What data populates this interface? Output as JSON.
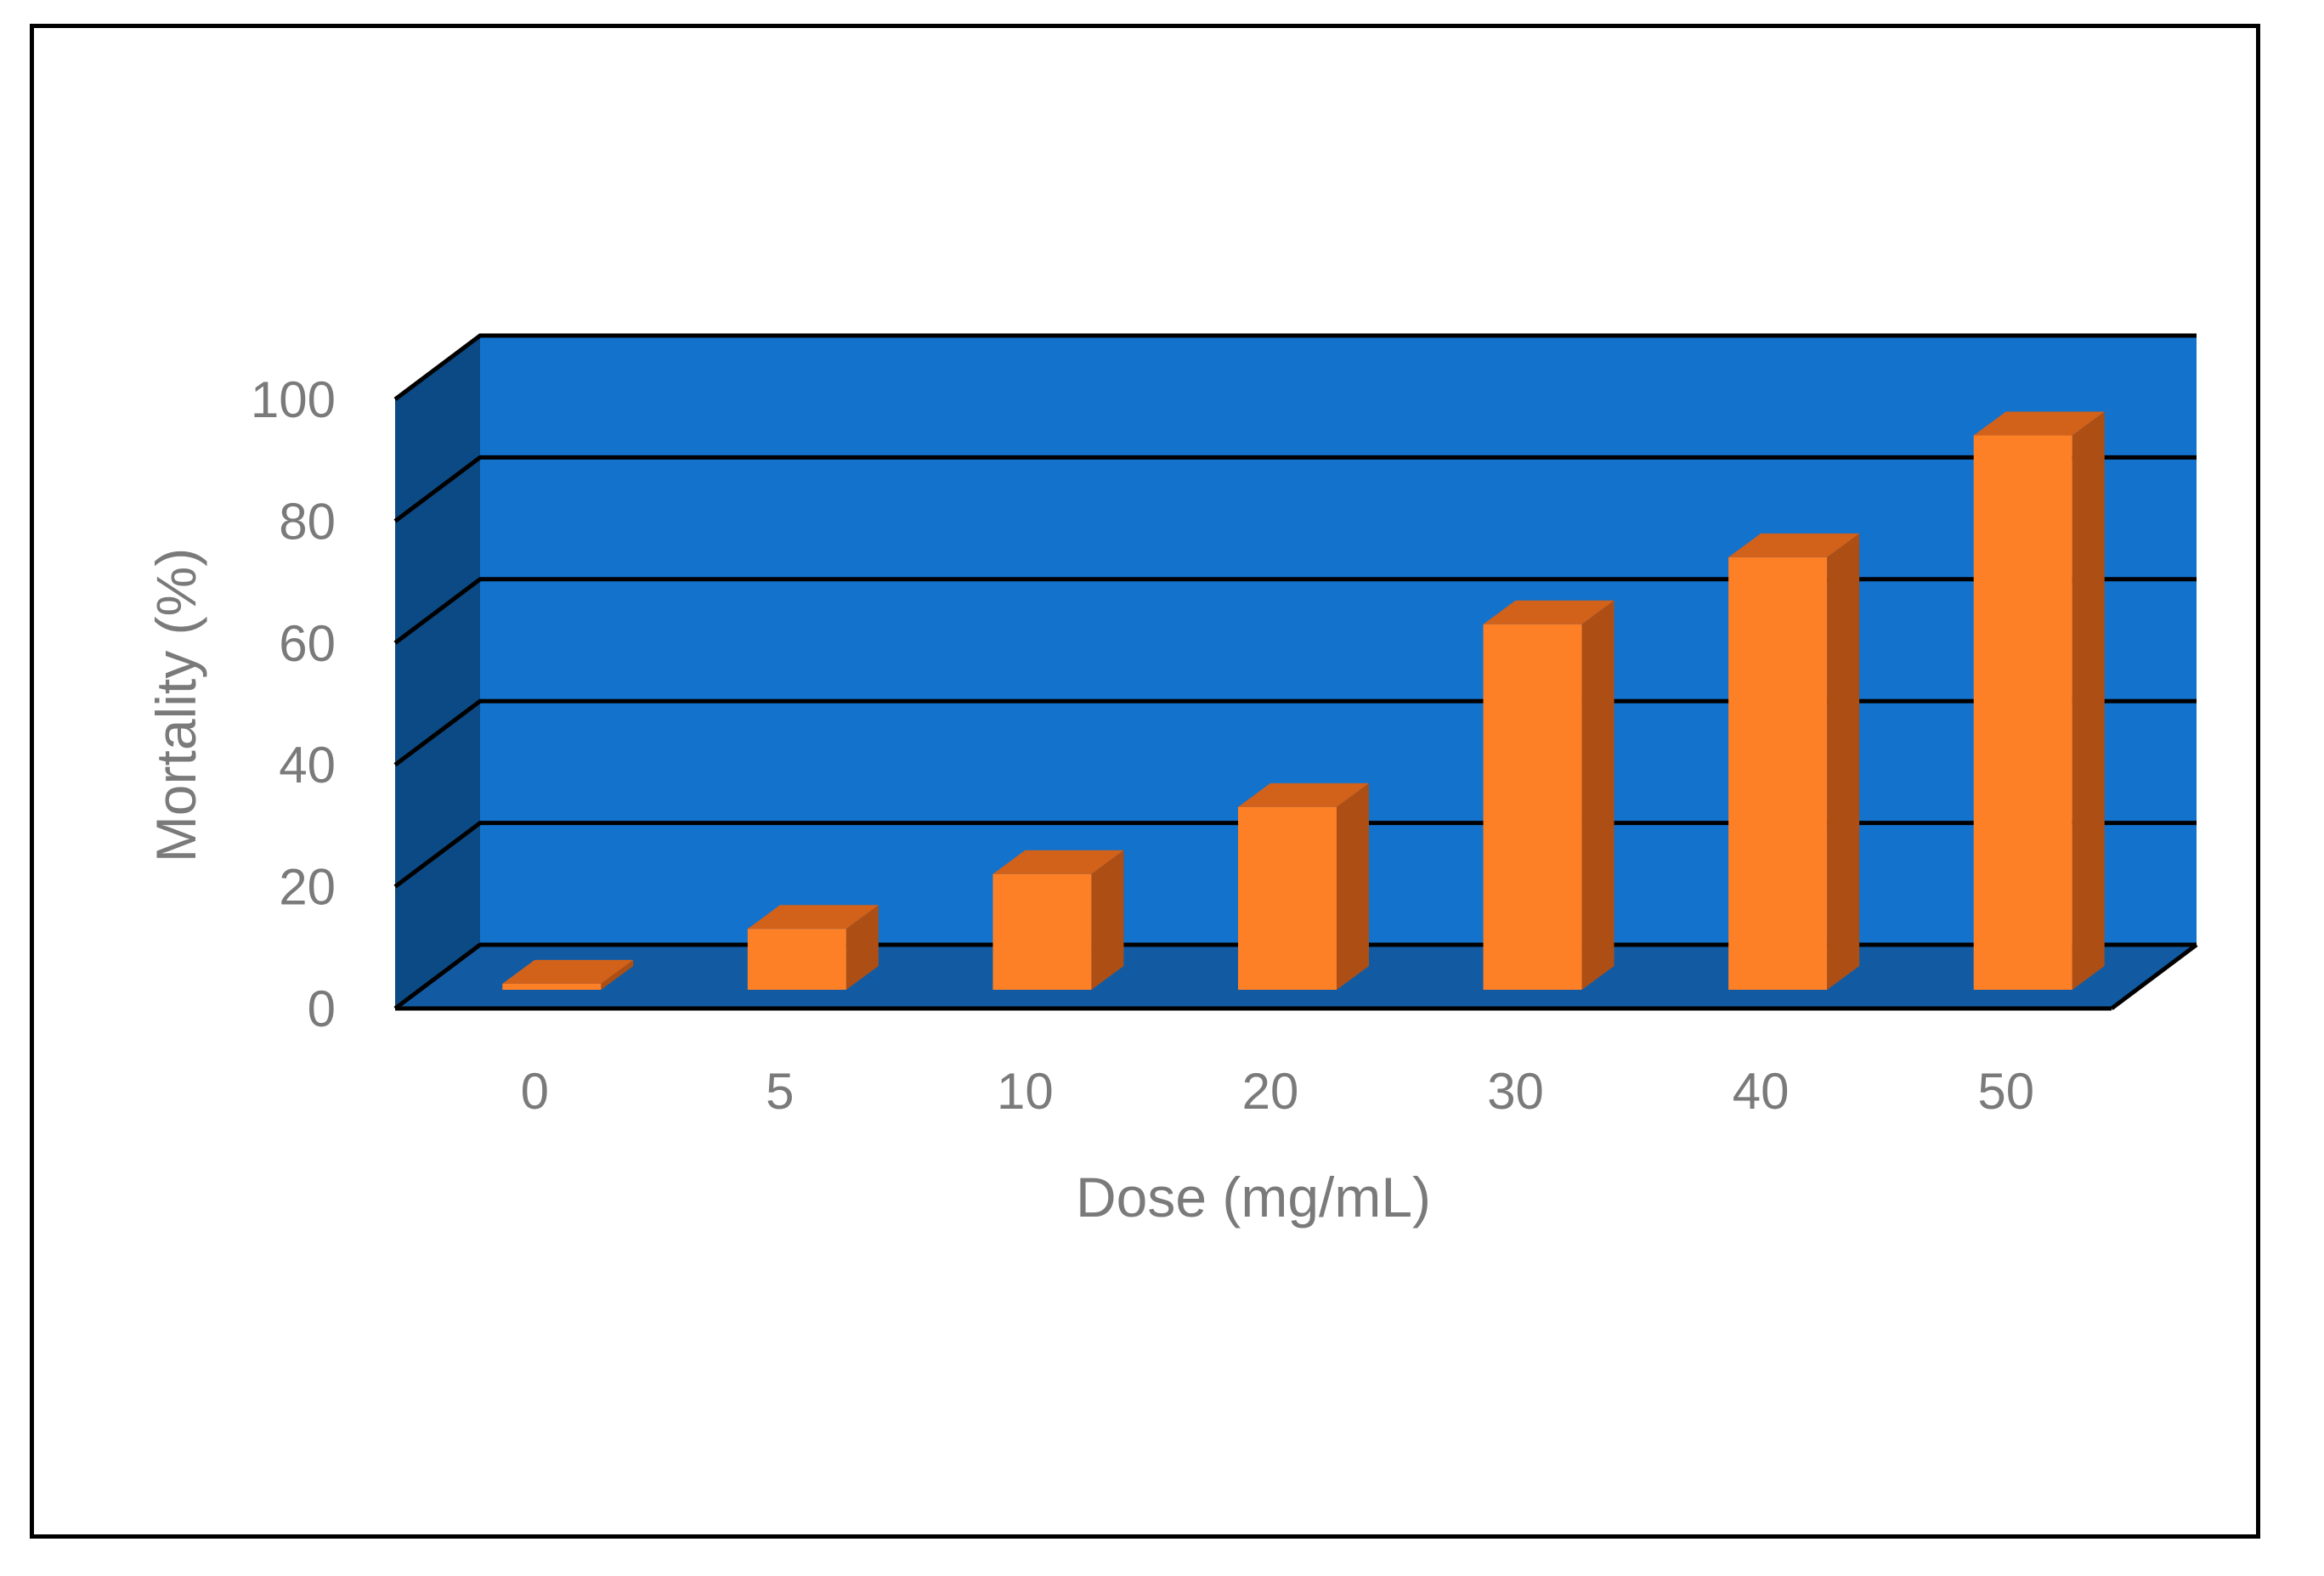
{
  "chart_data": {
    "type": "bar",
    "style": "3d-column",
    "categories": [
      "0",
      "5",
      "10",
      "20",
      "30",
      "40",
      "50"
    ],
    "values": [
      1,
      10,
      19,
      30,
      60,
      71,
      91
    ],
    "xlabel": "Dose (mg/mL)",
    "ylabel": "Mortality (%)",
    "ylim": [
      0,
      100
    ],
    "yticks": [
      "0",
      "20",
      "40",
      "60",
      "80",
      "100"
    ],
    "grid": true,
    "legend": "none",
    "colors": {
      "back_wall": "#1372cc",
      "side_wall": "#0b4a85",
      "floor": "#125ba3",
      "bar_front": "#fd7f26",
      "bar_top": "#d2611a",
      "bar_side": "#ad4f15",
      "gridline": "#000000",
      "text": "#7a7a7a"
    }
  }
}
